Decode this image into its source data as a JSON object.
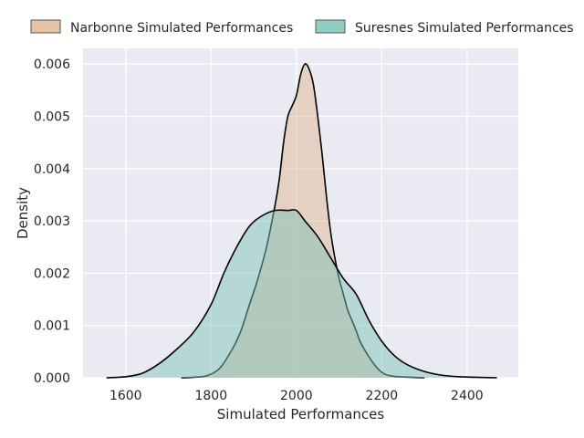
{
  "chart_data": {
    "type": "area",
    "title": "",
    "xlabel": "Simulated Performances",
    "ylabel": "Density",
    "xlim": [
      1500,
      2520
    ],
    "ylim": [
      0,
      0.0063
    ],
    "xticks": [
      "1600",
      "1800",
      "2000",
      "2200",
      "2400"
    ],
    "yticks": [
      "0.000",
      "0.001",
      "0.002",
      "0.003",
      "0.004",
      "0.005",
      "0.006"
    ],
    "grid": true,
    "legend_position": "top",
    "series": [
      {
        "name": "Narbonne Simulated Performances",
        "color": "#e0b894",
        "x": [
          1730,
          1760,
          1790,
          1820,
          1850,
          1870,
          1890,
          1910,
          1930,
          1950,
          1960,
          1970,
          1980,
          1990,
          2000,
          2010,
          2020,
          2030,
          2040,
          2050,
          2060,
          2070,
          2080,
          2090,
          2100,
          2110,
          2120,
          2130,
          2140,
          2150,
          2170,
          2190,
          2210,
          2240,
          2270,
          2300
        ],
        "y": [
          0.0,
          1e-05,
          4e-05,
          0.00018,
          0.00055,
          0.0009,
          0.0014,
          0.0019,
          0.0025,
          0.0033,
          0.0038,
          0.0045,
          0.005,
          0.0052,
          0.0054,
          0.0058,
          0.006,
          0.0059,
          0.0056,
          0.005,
          0.0043,
          0.0035,
          0.0028,
          0.0023,
          0.0019,
          0.0016,
          0.0013,
          0.0011,
          0.0009,
          0.00068,
          0.0004,
          0.00018,
          6e-05,
          2e-05,
          1e-05,
          0.0
        ]
      },
      {
        "name": "Suresnes Simulated Performances",
        "color": "#7fc4b8",
        "x": [
          1555,
          1600,
          1640,
          1680,
          1720,
          1760,
          1800,
          1830,
          1860,
          1890,
          1920,
          1950,
          1980,
          2000,
          2020,
          2050,
          2080,
          2110,
          2140,
          2170,
          2200,
          2230,
          2260,
          2300,
          2340,
          2380,
          2420,
          2470
        ],
        "y": [
          0.0,
          2e-05,
          9e-05,
          0.00028,
          0.00055,
          0.00088,
          0.0014,
          0.002,
          0.0025,
          0.0029,
          0.0031,
          0.0032,
          0.0032,
          0.0032,
          0.003,
          0.0027,
          0.0023,
          0.0019,
          0.0016,
          0.0011,
          0.0007,
          0.00042,
          0.00025,
          0.00012,
          5e-05,
          2e-05,
          1e-05,
          0.0
        ]
      }
    ]
  }
}
